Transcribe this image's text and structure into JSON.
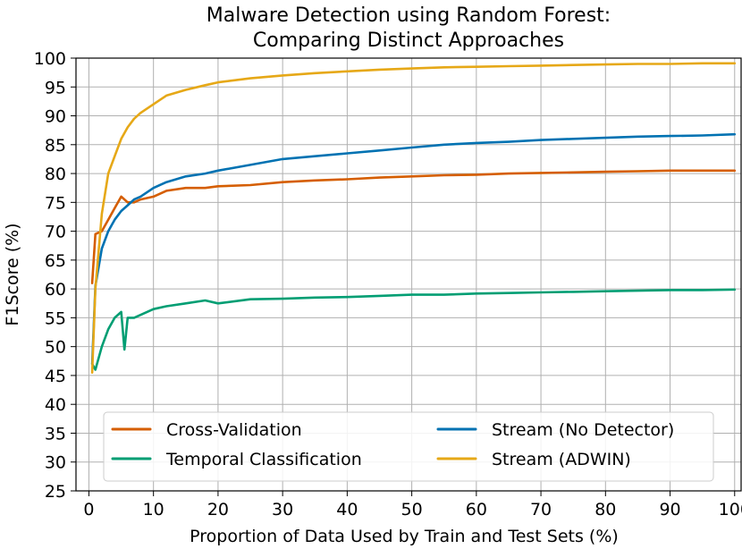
{
  "chart_data": {
    "type": "line",
    "title": [
      "Malware Detection using Random Forest:",
      "Comparing Distinct Approaches"
    ],
    "xlabel": "Proportion of Data Used by Train and Test Sets (%)",
    "ylabel": "F1Score (%)",
    "xlim": [
      -2,
      101
    ],
    "ylim": [
      25,
      100
    ],
    "xticks": [
      0,
      10,
      20,
      30,
      40,
      50,
      60,
      70,
      80,
      90,
      100
    ],
    "yticks": [
      25,
      30,
      35,
      40,
      45,
      50,
      55,
      60,
      65,
      70,
      75,
      80,
      85,
      90,
      95,
      100
    ],
    "grid": true,
    "legend": {
      "placement": "lower-center",
      "columns": 2
    },
    "series": [
      {
        "name": "Cross-Validation",
        "color": "#d55e00",
        "x": [
          0.5,
          1,
          2,
          3,
          4,
          5,
          6,
          7,
          8,
          10,
          12,
          15,
          18,
          20,
          25,
          30,
          35,
          40,
          45,
          50,
          55,
          60,
          65,
          70,
          75,
          80,
          85,
          90,
          95,
          100
        ],
        "values": [
          61,
          69.5,
          70,
          72,
          74,
          76,
          75,
          75,
          75.5,
          76,
          77,
          77.5,
          77.5,
          77.8,
          78,
          78.5,
          78.8,
          79,
          79.3,
          79.5,
          79.7,
          79.8,
          80,
          80.1,
          80.2,
          80.3,
          80.4,
          80.5,
          80.5,
          80.5
        ]
      },
      {
        "name": "Temporal Classification",
        "color": "#009e73",
        "x": [
          0.5,
          1,
          2,
          3,
          4,
          5,
          5.5,
          6,
          7,
          8,
          10,
          12,
          15,
          18,
          20,
          25,
          30,
          35,
          40,
          45,
          50,
          55,
          60,
          65,
          70,
          75,
          80,
          85,
          90,
          95,
          100
        ],
        "values": [
          47,
          46,
          50,
          53,
          55,
          56,
          49.5,
          55,
          55,
          55.5,
          56.5,
          57,
          57.5,
          58,
          57.5,
          58.2,
          58.3,
          58.5,
          58.6,
          58.8,
          59,
          59,
          59.2,
          59.3,
          59.4,
          59.5,
          59.6,
          59.7,
          59.8,
          59.8,
          59.9
        ]
      },
      {
        "name": "Stream (No Detector)",
        "color": "#0072b2",
        "x": [
          0.5,
          1,
          2,
          3,
          4,
          5,
          6,
          7,
          8,
          10,
          12,
          15,
          18,
          20,
          25,
          30,
          35,
          40,
          45,
          50,
          55,
          60,
          65,
          70,
          75,
          80,
          85,
          90,
          95,
          100
        ],
        "values": [
          47,
          60.5,
          67,
          70,
          72,
          73.5,
          74.5,
          75.5,
          76,
          77.5,
          78.5,
          79.5,
          80,
          80.5,
          81.5,
          82.5,
          83,
          83.5,
          84,
          84.5,
          85,
          85.3,
          85.5,
          85.8,
          86,
          86.2,
          86.4,
          86.5,
          86.6,
          86.8
        ]
      },
      {
        "name": "Stream (ADWIN)",
        "color": "#e6a817",
        "x": [
          0.5,
          1,
          2,
          3,
          4,
          5,
          6,
          7,
          8,
          10,
          12,
          15,
          18,
          20,
          25,
          30,
          35,
          40,
          45,
          50,
          55,
          60,
          65,
          70,
          75,
          80,
          85,
          90,
          95,
          100
        ],
        "values": [
          45.5,
          60,
          73,
          80,
          83,
          86,
          88,
          89.5,
          90.5,
          92,
          93.5,
          94.5,
          95.3,
          95.8,
          96.5,
          97,
          97.4,
          97.7,
          98,
          98.2,
          98.4,
          98.5,
          98.6,
          98.7,
          98.8,
          98.9,
          99,
          99,
          99.1,
          99.1
        ]
      }
    ]
  }
}
